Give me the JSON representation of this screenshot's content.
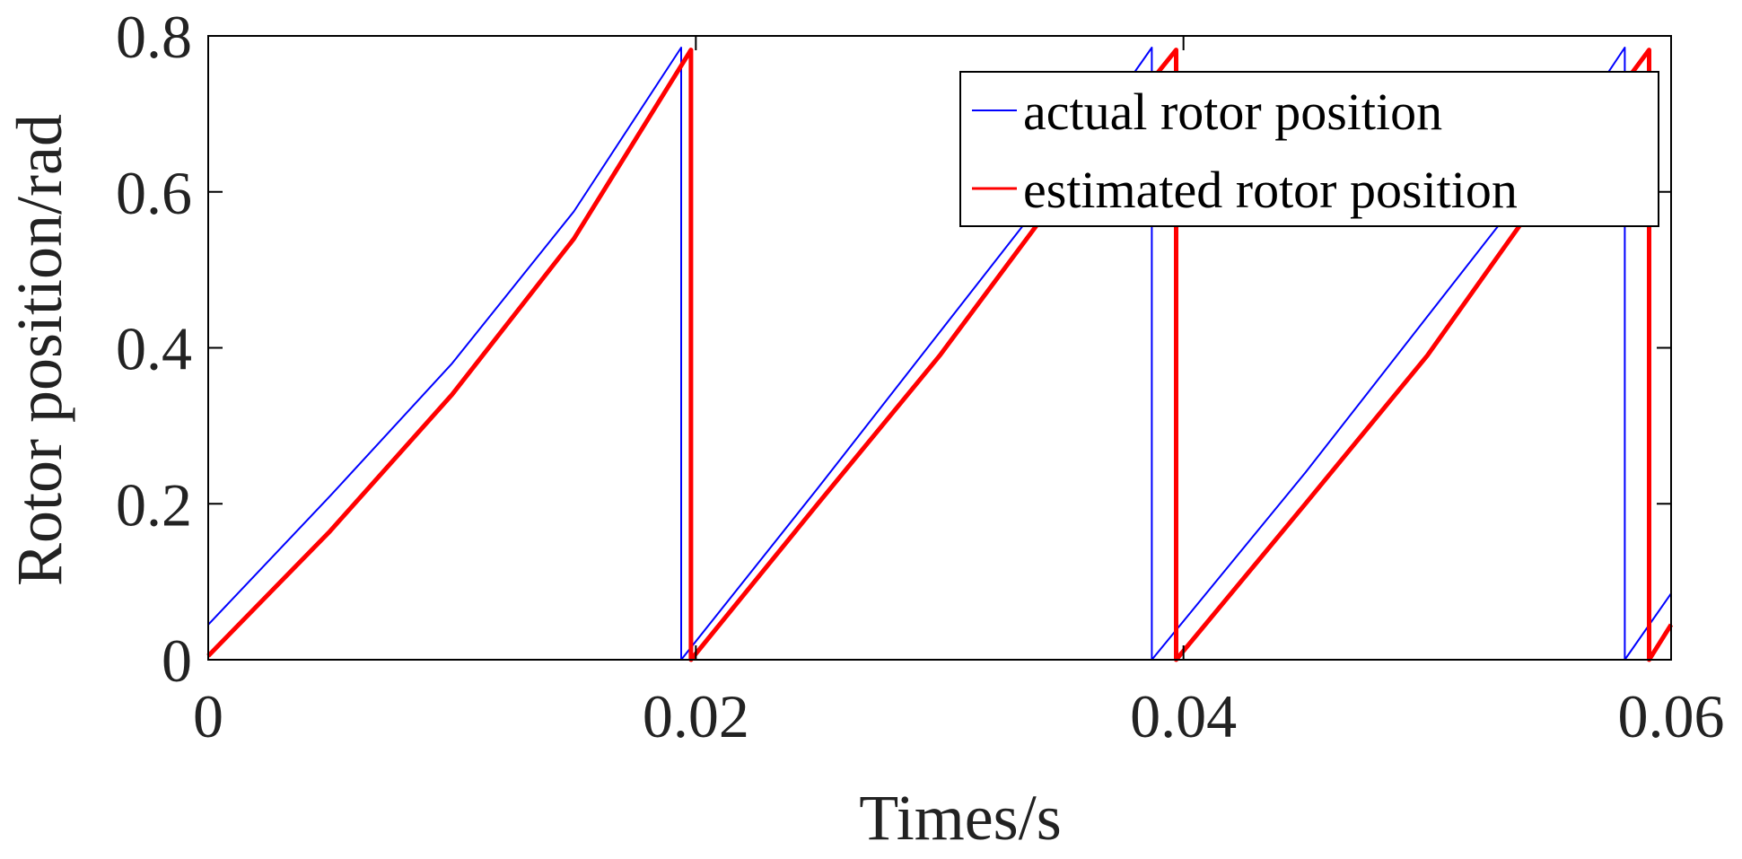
{
  "chart_data": {
    "type": "line",
    "title": "",
    "xlabel": "Times/s",
    "ylabel": "Rotor position/rad",
    "xlim": [
      0,
      0.06
    ],
    "ylim": [
      0,
      0.8
    ],
    "xticks": [
      0,
      0.02,
      0.04,
      0.06
    ],
    "xtick_labels": [
      "0",
      "0.02",
      "0.04",
      "0.06"
    ],
    "yticks": [
      0,
      0.2,
      0.4,
      0.6,
      0.8
    ],
    "ytick_labels": [
      "0",
      "0.2",
      "0.4",
      "0.6",
      "0.8"
    ],
    "grid": false,
    "legend_position": "top-right",
    "series": [
      {
        "name": "actual rotor position",
        "color": "#0000ff",
        "x": [
          0,
          0.005,
          0.01,
          0.015,
          0.0194,
          0.0194,
          0.0194,
          0.025,
          0.03,
          0.035,
          0.0387,
          0.0387,
          0.0387,
          0.045,
          0.05,
          0.055,
          0.0581,
          0.0581,
          0.0581,
          0.06
        ],
        "y": [
          0.045,
          0.21,
          0.38,
          0.575,
          0.785,
          0.0,
          0.0,
          0.22,
          0.42,
          0.62,
          0.785,
          0.0,
          0.0,
          0.24,
          0.44,
          0.64,
          0.785,
          0.0,
          0.0,
          0.085
        ]
      },
      {
        "name": "estimated rotor position",
        "color": "#ff0000",
        "x": [
          0,
          0.005,
          0.01,
          0.015,
          0.0198,
          0.0198,
          0.0198,
          0.025,
          0.03,
          0.035,
          0.0397,
          0.0397,
          0.0397,
          0.045,
          0.05,
          0.055,
          0.0591,
          0.0591,
          0.0591,
          0.06
        ],
        "y": [
          0.005,
          0.165,
          0.34,
          0.54,
          0.782,
          0.0,
          0.0,
          0.2,
          0.39,
          0.6,
          0.782,
          0.0,
          0.0,
          0.2,
          0.39,
          0.61,
          0.782,
          0.0,
          0.0,
          0.045
        ]
      }
    ]
  }
}
